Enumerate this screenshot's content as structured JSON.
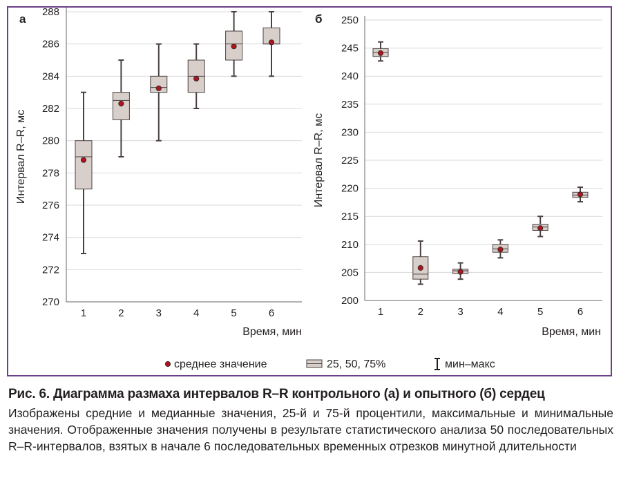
{
  "chart_data": [
    {
      "type": "boxplot",
      "panel_label": "а",
      "xlabel": "Время, мин",
      "ylabel": "Интервал R–R, мс",
      "ylim": [
        270,
        288
      ],
      "yticks": [
        270,
        272,
        274,
        276,
        278,
        280,
        282,
        284,
        286,
        288
      ],
      "categories": [
        "1",
        "2",
        "3",
        "4",
        "5",
        "6"
      ],
      "grid": "horizontal",
      "boxes": [
        {
          "x": "1",
          "min": 273,
          "q1": 277,
          "median": 279,
          "q3": 280,
          "max": 283,
          "mean": 278.8
        },
        {
          "x": "2",
          "min": 279,
          "q1": 281.3,
          "median": 282.5,
          "q3": 283,
          "max": 285,
          "mean": 282.3
        },
        {
          "x": "3",
          "min": 280,
          "q1": 283,
          "median": 283.3,
          "q3": 284,
          "max": 286,
          "mean": 283.25
        },
        {
          "x": "4",
          "min": 282,
          "q1": 283,
          "median": 284,
          "q3": 285,
          "max": 286,
          "mean": 283.85
        },
        {
          "x": "5",
          "min": 284,
          "q1": 285,
          "median": 286,
          "q3": 286.8,
          "max": 288,
          "mean": 285.85
        },
        {
          "x": "6",
          "min": 284,
          "q1": 286,
          "median": 286,
          "q3": 287,
          "max": 288,
          "mean": 286.1
        }
      ]
    },
    {
      "type": "boxplot",
      "panel_label": "б",
      "xlabel": "Время, мин",
      "ylabel": "Интервал R–R, мс",
      "ylim": [
        200,
        250
      ],
      "yticks": [
        200,
        205,
        210,
        215,
        220,
        225,
        230,
        235,
        240,
        245,
        250
      ],
      "categories": [
        "1",
        "2",
        "3",
        "4",
        "5",
        "6"
      ],
      "grid": "horizontal",
      "boxes": [
        {
          "x": "1",
          "min": 242.7,
          "q1": 243.5,
          "median": 244.2,
          "q3": 244.9,
          "max": 246.1,
          "mean": 244.1
        },
        {
          "x": "2",
          "min": 202.9,
          "q1": 203.8,
          "median": 204.7,
          "q3": 207.8,
          "max": 210.6,
          "mean": 205.8
        },
        {
          "x": "3",
          "min": 203.8,
          "q1": 204.8,
          "median": 205.3,
          "q3": 205.6,
          "max": 206.7,
          "mean": 205.1
        },
        {
          "x": "4",
          "min": 207.6,
          "q1": 208.6,
          "median": 209.2,
          "q3": 210.0,
          "max": 210.8,
          "mean": 209.1
        },
        {
          "x": "5",
          "min": 211.4,
          "q1": 212.5,
          "median": 213.1,
          "q3": 213.6,
          "max": 215.0,
          "mean": 212.9
        },
        {
          "x": "6",
          "min": 217.6,
          "q1": 218.4,
          "median": 218.8,
          "q3": 219.3,
          "max": 220.2,
          "mean": 218.9
        }
      ]
    }
  ],
  "legend": {
    "mean_label": "среднее значение",
    "box_label": "25, 50, 75%",
    "whisker_label": "мин–макс"
  },
  "colors": {
    "frame": "#6b3f86",
    "box_fill": "#d8cfca",
    "box_stroke": "#4a4040",
    "mean_fill": "#b4121b",
    "grid": "#d9d9d9",
    "axis": "#666666"
  },
  "caption": {
    "title": "Рис. 6. Диаграмма размаха интервалов R–R контрольного (а) и опытного (б) сердец",
    "body": "Изображены средние и медианные значения, 25-й и 75-й процентили, максимальные и минимальные значения. Отображенные значения получены в результате статистического анализа 50 последовательных R–R-интервалов, взятых в начале 6 последовательных временных отрезков минутной длительности"
  }
}
